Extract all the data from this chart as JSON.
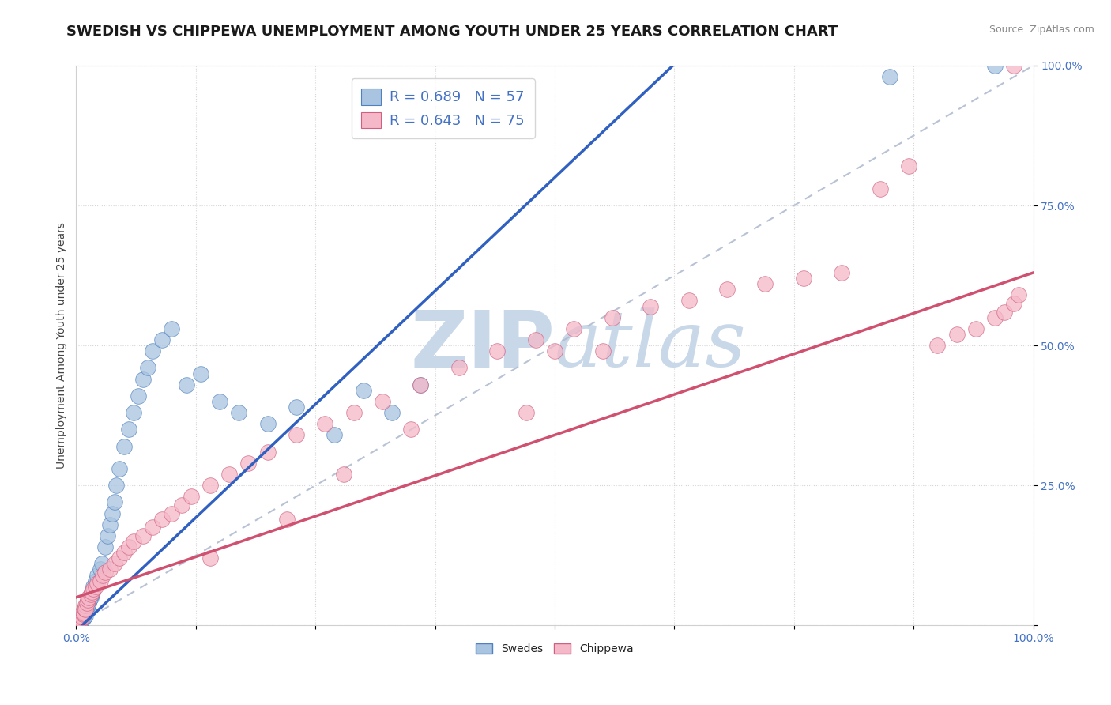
{
  "title": "SWEDISH VS CHIPPEWA UNEMPLOYMENT AMONG YOUTH UNDER 25 YEARS CORRELATION CHART",
  "source": "Source: ZipAtlas.com",
  "ylabel": "Unemployment Among Youth under 25 years",
  "xlim": [
    0,
    1
  ],
  "ylim": [
    0,
    1
  ],
  "R_swedes": 0.689,
  "N_swedes": 57,
  "R_chippewa": 0.643,
  "N_chippewa": 75,
  "swedes_color": "#a8c4e0",
  "chippewa_color": "#f5b8c8",
  "swedes_edge_color": "#5080c0",
  "chippewa_edge_color": "#d06080",
  "background_color": "#ffffff",
  "grid_color": "#cccccc",
  "watermark_color": "#c8d8e8",
  "swedes_reg_color": "#3060c0",
  "chippewa_reg_color": "#d05070",
  "diagonal_color": "#b0bcd0",
  "title_fontsize": 13,
  "tick_color": "#4472c4",
  "swedes_x": [
    0.001,
    0.002,
    0.002,
    0.003,
    0.003,
    0.004,
    0.004,
    0.005,
    0.005,
    0.006,
    0.006,
    0.007,
    0.008,
    0.008,
    0.009,
    0.01,
    0.01,
    0.011,
    0.012,
    0.013,
    0.014,
    0.015,
    0.016,
    0.017,
    0.018,
    0.02,
    0.022,
    0.025,
    0.027,
    0.03,
    0.033,
    0.035,
    0.038,
    0.04,
    0.042,
    0.045,
    0.05,
    0.055,
    0.06,
    0.065,
    0.07,
    0.075,
    0.08,
    0.09,
    0.1,
    0.115,
    0.13,
    0.15,
    0.17,
    0.2,
    0.23,
    0.27,
    0.3,
    0.33,
    0.36,
    0.85,
    0.96
  ],
  "swedes_y": [
    0.002,
    0.003,
    0.005,
    0.004,
    0.008,
    0.006,
    0.01,
    0.008,
    0.012,
    0.01,
    0.015,
    0.012,
    0.018,
    0.015,
    0.02,
    0.025,
    0.018,
    0.03,
    0.035,
    0.04,
    0.045,
    0.05,
    0.055,
    0.06,
    0.07,
    0.08,
    0.09,
    0.1,
    0.11,
    0.14,
    0.16,
    0.18,
    0.2,
    0.22,
    0.25,
    0.28,
    0.32,
    0.35,
    0.38,
    0.41,
    0.44,
    0.46,
    0.49,
    0.51,
    0.53,
    0.43,
    0.45,
    0.4,
    0.38,
    0.36,
    0.39,
    0.34,
    0.42,
    0.38,
    0.43,
    0.98,
    1.0
  ],
  "chippewa_x": [
    0.001,
    0.002,
    0.002,
    0.003,
    0.004,
    0.004,
    0.005,
    0.005,
    0.006,
    0.007,
    0.007,
    0.008,
    0.009,
    0.01,
    0.01,
    0.011,
    0.012,
    0.013,
    0.015,
    0.016,
    0.018,
    0.02,
    0.022,
    0.025,
    0.028,
    0.03,
    0.035,
    0.04,
    0.045,
    0.05,
    0.055,
    0.06,
    0.07,
    0.08,
    0.09,
    0.1,
    0.11,
    0.12,
    0.14,
    0.16,
    0.18,
    0.2,
    0.23,
    0.26,
    0.29,
    0.32,
    0.36,
    0.4,
    0.44,
    0.48,
    0.52,
    0.56,
    0.6,
    0.64,
    0.68,
    0.72,
    0.76,
    0.8,
    0.84,
    0.87,
    0.9,
    0.92,
    0.94,
    0.96,
    0.97,
    0.98,
    0.985,
    0.55,
    0.5,
    0.47,
    0.35,
    0.28,
    0.22,
    0.14,
    0.98
  ],
  "chippewa_y": [
    0.005,
    0.008,
    0.012,
    0.01,
    0.015,
    0.008,
    0.012,
    0.018,
    0.015,
    0.02,
    0.025,
    0.022,
    0.03,
    0.035,
    0.028,
    0.04,
    0.045,
    0.05,
    0.055,
    0.06,
    0.065,
    0.07,
    0.075,
    0.08,
    0.09,
    0.095,
    0.1,
    0.11,
    0.12,
    0.13,
    0.14,
    0.15,
    0.16,
    0.175,
    0.19,
    0.2,
    0.215,
    0.23,
    0.25,
    0.27,
    0.29,
    0.31,
    0.34,
    0.36,
    0.38,
    0.4,
    0.43,
    0.46,
    0.49,
    0.51,
    0.53,
    0.55,
    0.57,
    0.58,
    0.6,
    0.61,
    0.62,
    0.63,
    0.78,
    0.82,
    0.5,
    0.52,
    0.53,
    0.55,
    0.56,
    0.575,
    0.59,
    0.49,
    0.49,
    0.38,
    0.35,
    0.27,
    0.19,
    0.12,
    1.0
  ],
  "swedes_reg_slope": 1.62,
  "swedes_reg_intercept": -0.01,
  "chippewa_reg_slope": 0.58,
  "chippewa_reg_intercept": 0.05
}
